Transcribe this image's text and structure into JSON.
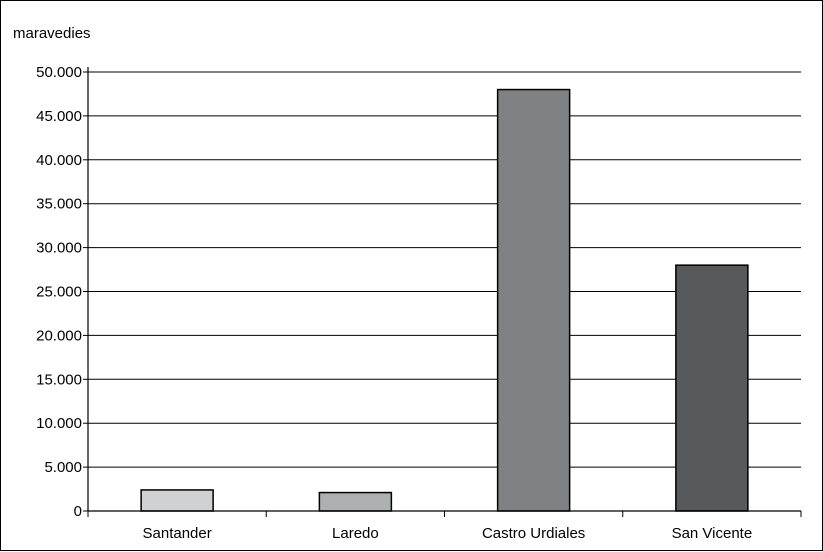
{
  "chart_data": {
    "type": "bar",
    "ylabel": "maravedies",
    "categories": [
      "Santander",
      "Laredo",
      "Castro Urdiales",
      "San Vicente"
    ],
    "values": [
      2400,
      2100,
      48000,
      28000
    ],
    "ylim": [
      0,
      50000
    ],
    "yticks": [
      0,
      5000,
      10000,
      15000,
      20000,
      25000,
      30000,
      35000,
      40000,
      45000,
      50000
    ],
    "ytick_labels": [
      "0",
      "5.000",
      "10.000",
      "15.000",
      "20.000",
      "25.000",
      "30.000",
      "35.000",
      "40.000",
      "45.000",
      "50.000"
    ],
    "bar_colors": [
      "#d0d1d3",
      "#aeafb1",
      "#808184",
      "#58595b"
    ],
    "grid": true,
    "legend": "none"
  }
}
